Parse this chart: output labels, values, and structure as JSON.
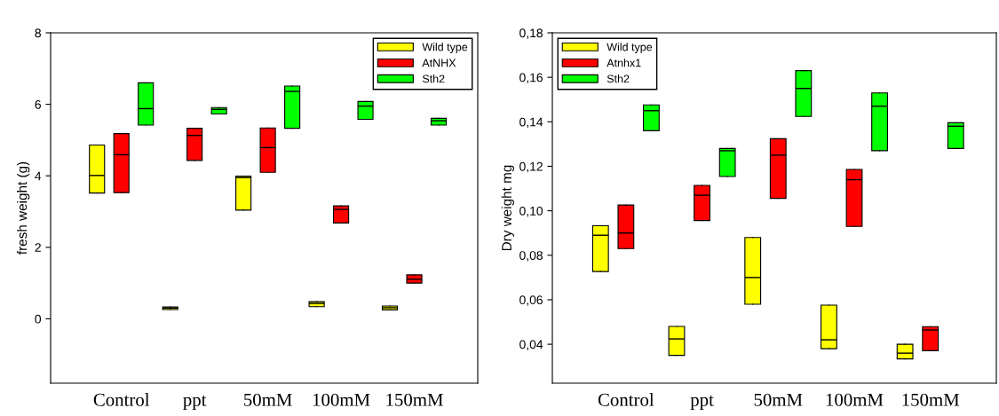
{
  "chart_data": [
    {
      "type": "box",
      "categories": [
        "Control",
        "ppt",
        "50mM",
        "100mM",
        "150mM"
      ],
      "ylabel": "fresh weight (g)",
      "ylim": [
        -1.8,
        8
      ],
      "yticks": [
        0,
        2,
        4,
        6,
        8
      ],
      "legend": "top right",
      "grid": false,
      "series": [
        {
          "name": "Wild type",
          "color": "#ffff00",
          "boxes": [
            {
              "low": 3.52,
              "q1": 3.52,
              "median": 4.01,
              "q3": 4.86,
              "high": 4.86
            },
            {
              "low": 0.26,
              "q1": 0.26,
              "median": 0.3,
              "q3": 0.33,
              "high": 0.33
            },
            {
              "low": 3.04,
              "q1": 3.04,
              "median": 3.95,
              "q3": 3.99,
              "high": 3.99
            },
            {
              "low": 0.34,
              "q1": 0.34,
              "median": 0.43,
              "q3": 0.48,
              "high": 0.48
            },
            {
              "low": 0.25,
              "q1": 0.25,
              "median": 0.31,
              "q3": 0.36,
              "high": 0.36
            }
          ]
        },
        {
          "name": "AtNHX",
          "color": "#ff0000",
          "boxes": [
            {
              "low": 3.53,
              "q1": 3.53,
              "median": 4.59,
              "q3": 5.18,
              "high": 5.18
            },
            {
              "low": 4.43,
              "q1": 4.43,
              "median": 5.13,
              "q3": 5.33,
              "high": 5.33
            },
            {
              "low": 4.1,
              "q1": 4.1,
              "median": 4.79,
              "q3": 5.34,
              "high": 5.34
            },
            {
              "low": 2.68,
              "q1": 2.68,
              "median": 3.06,
              "q3": 3.16,
              "high": 3.16
            },
            {
              "low": 1.0,
              "q1": 1.0,
              "median": 1.11,
              "q3": 1.23,
              "high": 1.23
            }
          ]
        },
        {
          "name": "Sth2",
          "color": "#00ff00",
          "boxes": [
            {
              "low": 5.42,
              "q1": 5.42,
              "median": 5.88,
              "q3": 6.6,
              "high": 6.6
            },
            {
              "low": 5.73,
              "q1": 5.73,
              "median": 5.86,
              "q3": 5.91,
              "high": 5.91
            },
            {
              "low": 5.33,
              "q1": 5.33,
              "median": 6.36,
              "q3": 6.51,
              "high": 6.51
            },
            {
              "low": 5.58,
              "q1": 5.58,
              "median": 5.95,
              "q3": 6.08,
              "high": 6.08
            },
            {
              "low": 5.42,
              "q1": 5.42,
              "median": 5.54,
              "q3": 5.61,
              "high": 5.61
            }
          ]
        }
      ]
    },
    {
      "type": "box",
      "categories": [
        "Control",
        "ppt",
        "50mM",
        "100mM",
        "150mM"
      ],
      "ylabel": "Dry weight mg",
      "ylim": [
        0.0225,
        0.18
      ],
      "yticks": [
        {
          "value": 0.04,
          "label": "0,04"
        },
        {
          "value": 0.06,
          "label": "0,06"
        },
        {
          "value": 0.08,
          "label": "0,08"
        },
        {
          "value": 0.1,
          "label": "0,10"
        },
        {
          "value": 0.12,
          "label": "0,12"
        },
        {
          "value": 0.14,
          "label": "0,14"
        },
        {
          "value": 0.16,
          "label": "0,16"
        },
        {
          "value": 0.18,
          "label": "0,18"
        }
      ],
      "legend": "top left",
      "grid": false,
      "series": [
        {
          "name": "Wild type",
          "color": "#ffff00",
          "boxes": [
            {
              "low": 0.0727,
              "q1": 0.0727,
              "median": 0.089,
              "q3": 0.0933,
              "high": 0.0933
            },
            {
              "low": 0.035,
              "q1": 0.035,
              "median": 0.0424,
              "q3": 0.048,
              "high": 0.048
            },
            {
              "low": 0.058,
              "q1": 0.058,
              "median": 0.07,
              "q3": 0.088,
              "high": 0.088
            },
            {
              "low": 0.038,
              "q1": 0.038,
              "median": 0.042,
              "q3": 0.0576,
              "high": 0.0576
            },
            {
              "low": 0.0334,
              "q1": 0.0334,
              "median": 0.036,
              "q3": 0.04,
              "high": 0.04
            }
          ]
        },
        {
          "name": "Atnhx1",
          "color": "#ff0000",
          "boxes": [
            {
              "low": 0.083,
              "q1": 0.083,
              "median": 0.09,
              "q3": 0.1026,
              "high": 0.1026
            },
            {
              "low": 0.0956,
              "q1": 0.0956,
              "median": 0.107,
              "q3": 0.1114,
              "high": 0.1114
            },
            {
              "low": 0.1056,
              "q1": 0.1056,
              "median": 0.125,
              "q3": 0.1324,
              "high": 0.1324
            },
            {
              "low": 0.093,
              "q1": 0.093,
              "median": 0.114,
              "q3": 0.1186,
              "high": 0.1186
            },
            {
              "low": 0.0371,
              "q1": 0.0371,
              "median": 0.0464,
              "q3": 0.0479,
              "high": 0.0479
            }
          ]
        },
        {
          "name": "Sth2",
          "color": "#00ff00",
          "boxes": [
            {
              "low": 0.136,
              "q1": 0.136,
              "median": 0.145,
              "q3": 0.1476,
              "high": 0.1476
            },
            {
              "low": 0.1154,
              "q1": 0.1154,
              "median": 0.127,
              "q3": 0.128,
              "high": 0.128
            },
            {
              "low": 0.1424,
              "q1": 0.1424,
              "median": 0.155,
              "q3": 0.163,
              "high": 0.163
            },
            {
              "low": 0.127,
              "q1": 0.127,
              "median": 0.147,
              "q3": 0.153,
              "high": 0.153
            },
            {
              "low": 0.128,
              "q1": 0.128,
              "median": 0.138,
              "q3": 0.1396,
              "high": 0.1396
            }
          ]
        }
      ]
    }
  ]
}
